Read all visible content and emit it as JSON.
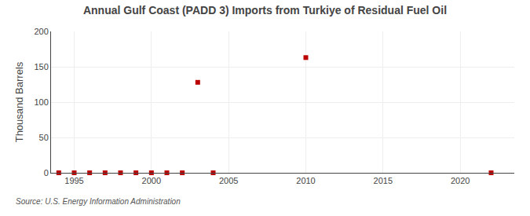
{
  "chart_data": {
    "type": "scatter",
    "title": "Annual Gulf Coast (PADD 3) Imports from Turkiye of Residual Fuel Oil",
    "ylabel": "Thousand Barrels",
    "annotation": "Source: U.S. Energy Information Administration",
    "x": [
      1994,
      1995,
      1996,
      1997,
      1998,
      1999,
      2000,
      2001,
      2002,
      2003,
      2004,
      2010,
      2022
    ],
    "values": [
      0,
      0,
      0,
      0,
      0,
      0,
      0,
      0,
      0,
      128,
      0,
      163,
      0
    ],
    "color": "#bb0000",
    "marker": "square",
    "xlim": [
      1993.5,
      2023.5
    ],
    "ylim": [
      0,
      200
    ],
    "xticks": [
      1995,
      2000,
      2005,
      2010,
      2015,
      2020
    ],
    "yticks": [
      0,
      50,
      100,
      150,
      200
    ],
    "grid": true
  }
}
